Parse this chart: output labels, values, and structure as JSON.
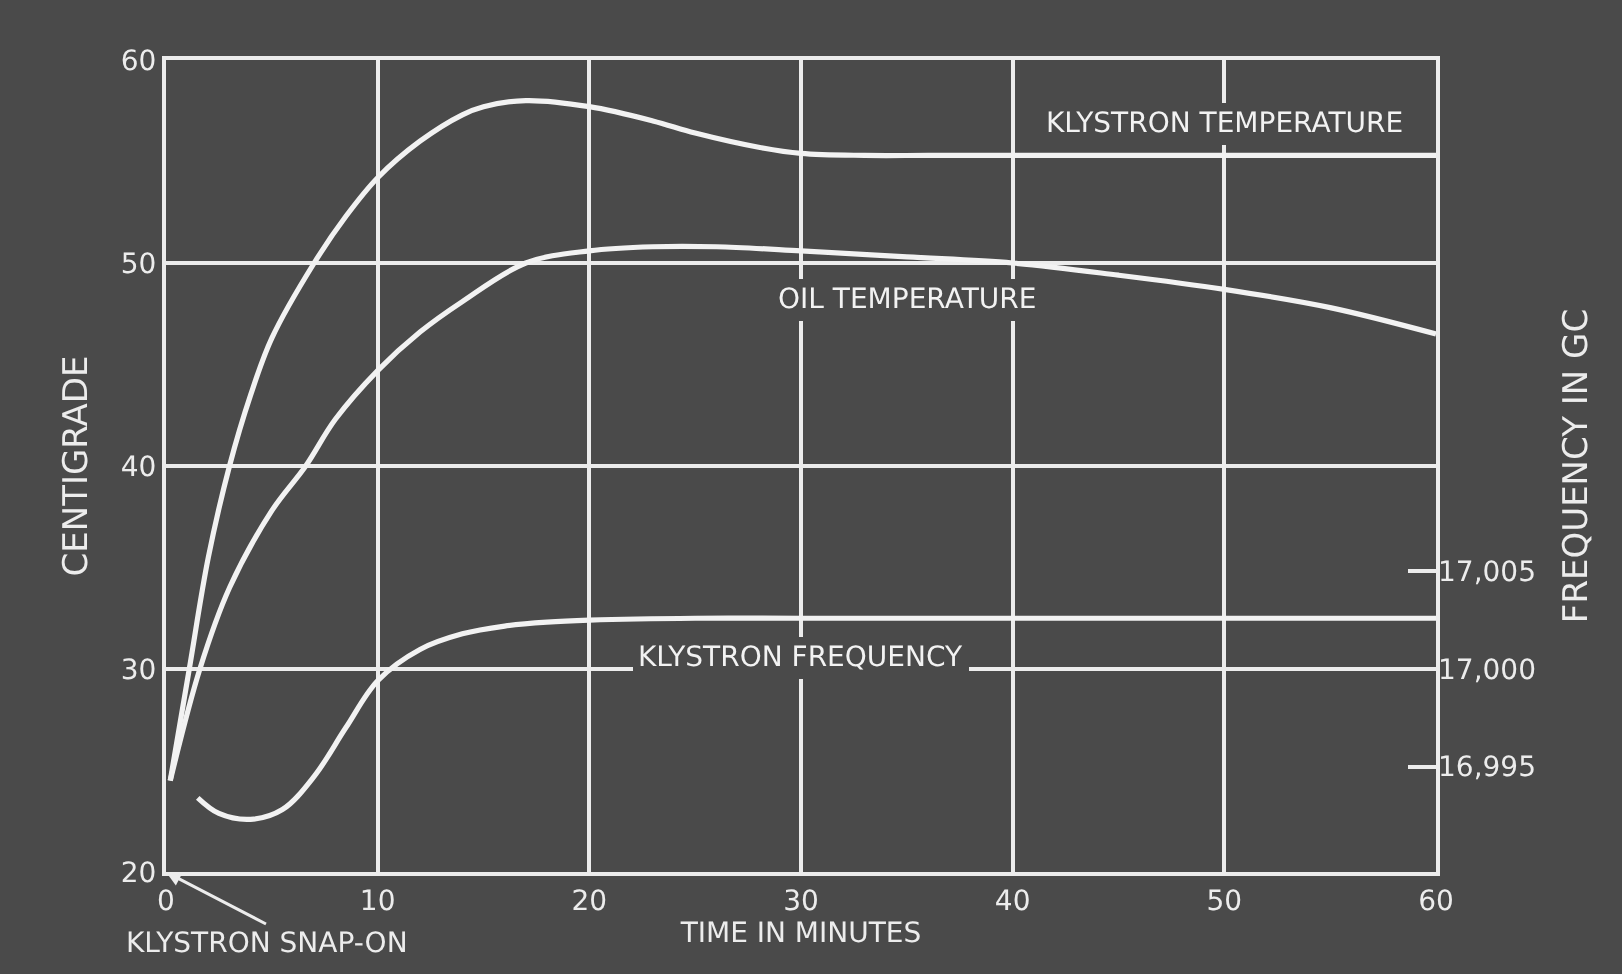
{
  "chart_data": {
    "type": "line",
    "xlabel": "TIME IN MINUTES",
    "ylabel": "CENTIGRADE",
    "y2label": "FREQUENCY IN GC",
    "xlim": [
      0,
      60
    ],
    "xticks": [
      0,
      10,
      20,
      30,
      40,
      50,
      60
    ],
    "ylim": [
      20,
      60
    ],
    "yticks": [
      20,
      30,
      40,
      50,
      60
    ],
    "y2lim": [
      16989.6,
      17031.2
    ],
    "y2ticks": [
      {
        "value": 16995,
        "label": "16,995"
      },
      {
        "value": 17000,
        "label": "17,000"
      },
      {
        "value": 17005,
        "label": "17,005"
      }
    ],
    "grid": true,
    "legend": false,
    "marker": "none",
    "line_style": "solid",
    "series": [
      {
        "name": "KLYSTRON TEMPERATURE",
        "color": "#f2f2f2",
        "x": [
          0.2,
          1.1,
          2,
          3,
          4,
          5,
          7,
          8.5,
          10,
          12,
          14,
          15,
          17,
          20,
          23,
          25,
          28,
          30,
          33,
          36,
          40,
          50,
          60
        ],
        "values": [
          24.5,
          30,
          35.5,
          40,
          43.5,
          46.3,
          50,
          52.3,
          54.2,
          56,
          57.3,
          57.7,
          58,
          57.7,
          57,
          56.4,
          55.7,
          55.4,
          55.3,
          55.3,
          55.3,
          55.3,
          55.3
        ]
      },
      {
        "name": "OIL TEMPERATURE",
        "color": "#f2f2f2",
        "x": [
          0.2,
          1.6,
          3,
          5,
          6.6,
          8,
          10,
          12,
          14,
          17,
          20,
          23,
          26,
          30,
          35,
          40,
          45,
          50,
          55,
          60
        ],
        "values": [
          24.5,
          30,
          34,
          37.8,
          40,
          42.3,
          44.7,
          46.6,
          48.1,
          50,
          50.6,
          50.8,
          50.8,
          50.6,
          50.3,
          50,
          49.4,
          48.7,
          47.8,
          46.5
        ]
      },
      {
        "name": "KLYSTRON FREQUENCY",
        "color": "#f2f2f2",
        "axis": "y2",
        "x": [
          1.5,
          2.5,
          4,
          5.5,
          7,
          8.5,
          10,
          12,
          14,
          16,
          18,
          20,
          25,
          30,
          40,
          50,
          60
        ],
        "values": [
          16993.4,
          16992.6,
          16992.3,
          16992.8,
          16994.5,
          16997,
          16999.4,
          17001,
          17001.8,
          17002.2,
          17002.4,
          17002.5,
          17002.6,
          17002.6,
          17002.6,
          17002.6,
          17002.6
        ]
      }
    ],
    "annotations": [
      "KLYSTRON SNAP-ON"
    ]
  }
}
